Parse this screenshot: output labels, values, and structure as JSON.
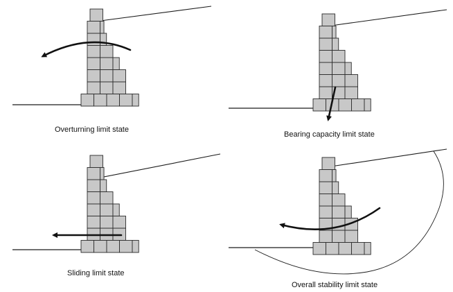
{
  "captions": {
    "overturning": "Overturning limit state",
    "bearing": "Bearing capacity limit state",
    "sliding": "Sliding limit state",
    "overall": "Overall stability limit state"
  }
}
